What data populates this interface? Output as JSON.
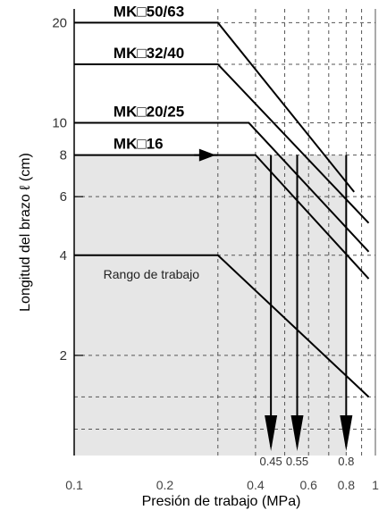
{
  "chart_data": {
    "type": "line",
    "xlabel": "Presión de trabajo (MPa)",
    "ylabel": "Longitud del brazo ℓ (cm)",
    "x_scale": "log",
    "y_scale": "log",
    "xlim": [
      0.1,
      1.0
    ],
    "ylim": [
      1,
      22
    ],
    "x_tick_labels": [
      "0.1",
      "0.2",
      "0.4",
      "0.6",
      "0.8",
      "1"
    ],
    "x_tick_values": [
      0.1,
      0.2,
      0.4,
      0.6,
      0.8,
      1.0
    ],
    "y_tick_labels": [
      "20",
      "10",
      "8",
      "6",
      "4",
      "2"
    ],
    "y_tick_values": [
      20,
      10,
      8,
      6,
      4,
      2
    ],
    "grid": true,
    "series": [
      {
        "name": "MK□50/63",
        "points": [
          [
            0.1,
            20
          ],
          [
            0.3,
            20
          ],
          [
            0.85,
            6.2
          ]
        ]
      },
      {
        "name": "MK□32/40",
        "points": [
          [
            0.1,
            15
          ],
          [
            0.3,
            15
          ],
          [
            0.95,
            5.0
          ]
        ]
      },
      {
        "name": "MK□20/25",
        "points": [
          [
            0.1,
            10
          ],
          [
            0.38,
            10
          ],
          [
            0.95,
            4.1
          ]
        ]
      },
      {
        "name": "MK□16",
        "points": [
          [
            0.1,
            8
          ],
          [
            0.4,
            8
          ],
          [
            0.95,
            3.4
          ]
        ]
      },
      {
        "name": "",
        "points": [
          [
            0.1,
            4
          ],
          [
            0.3,
            4
          ],
          [
            0.95,
            1.5
          ]
        ]
      }
    ],
    "work_range": {
      "x": [
        0.1,
        0.8
      ],
      "y": [
        1,
        8
      ]
    },
    "arrows": [
      {
        "x": 0.45,
        "label": "0.45"
      },
      {
        "x": 0.55,
        "label": "0.55"
      },
      {
        "x": 0.8,
        "label": "0.8"
      }
    ],
    "annotations": [
      "Rango de trabajo"
    ],
    "colors": {
      "fill": "#e6e6e6",
      "line": "#000000",
      "grid": "#555555"
    }
  }
}
